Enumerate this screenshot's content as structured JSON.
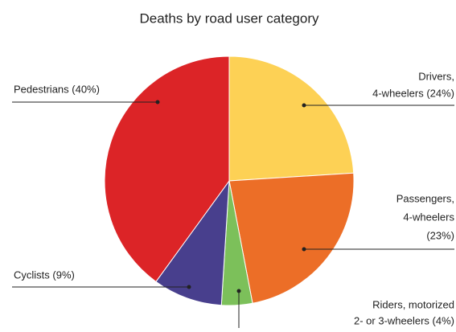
{
  "chart_data": {
    "type": "pie",
    "title": "Deaths by road user category",
    "categories": [
      [
        "Drivers,",
        "4-wheelers (24%)"
      ],
      [
        "Passengers,",
        "4-wheelers",
        "(23%)"
      ],
      [
        "Riders, motorized",
        "2- or 3-wheelers (4%)"
      ],
      [
        "Cyclists (9%)"
      ],
      [
        "Pedestrians (40%)"
      ]
    ],
    "values": [
      24,
      23,
      4,
      9,
      40
    ],
    "colors": [
      "#fdd155",
      "#ec6e27",
      "#7cc05a",
      "#483f8d",
      "#dc2427"
    ]
  }
}
